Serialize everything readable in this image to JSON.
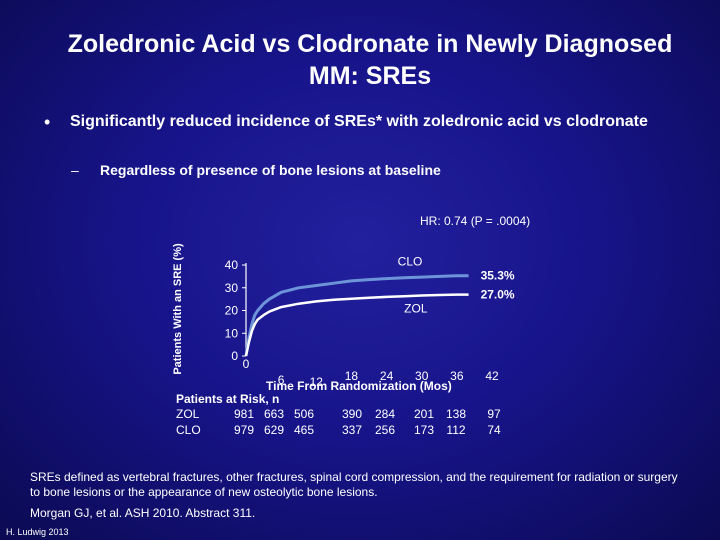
{
  "slide": {
    "title": "Zoledronic Acid vs Clodronate in Newly Diagnosed MM: SREs",
    "bullet_marker": "•",
    "bullet": "Significantly reduced incidence of SREs* with zoledronic acid vs clodronate",
    "sub_marker": "–",
    "sub_bullet": "Regardless of presence of bone lesions at baseline",
    "hr_note": "HR: 0.74 (P = .0004)",
    "footnote": "SREs defined as vertebral fractures, other fractures, spinal cord compression, and the requirement for radiation or surgery to bone lesions or the appearance of new osteolytic bone lesions.",
    "citation": "Morgan GJ, et al. ASH 2010. Abstract 311.",
    "credit": "H. Ludwig 2013"
  },
  "colors": {
    "background": "#17148a",
    "clo": "#6d94d8",
    "zol": "#ffffff"
  },
  "risk_table": {
    "heading": "Patients at Risk, n",
    "rows": [
      {
        "label": "ZOL",
        "values": [
          "981",
          "663",
          "506",
          "390",
          "284",
          "201",
          "138",
          "97"
        ]
      },
      {
        "label": "CLO",
        "values": [
          "979",
          "629",
          "465",
          "337",
          "256",
          "173",
          "112",
          "74"
        ]
      }
    ]
  },
  "chart_data": {
    "type": "line",
    "xlabel": "Time From Randomization (Mos)",
    "ylabel": "Patients With an SRE (%)",
    "xlim": [
      0,
      42
    ],
    "ylim": [
      0,
      40
    ],
    "x_ticks": [
      "0",
      "6",
      "12",
      "18",
      "24",
      "30",
      "36",
      "42"
    ],
    "y_ticks": [
      "0",
      "10",
      "20",
      "30",
      "40"
    ],
    "series": [
      {
        "name": "CLO",
        "end_label": "35.3%",
        "points": [
          [
            0,
            0
          ],
          [
            0.5,
            8
          ],
          [
            1,
            14
          ],
          [
            1.5,
            18
          ],
          [
            2,
            20
          ],
          [
            3,
            23
          ],
          [
            4,
            25
          ],
          [
            6,
            28
          ],
          [
            9,
            30
          ],
          [
            12,
            31
          ],
          [
            15,
            32
          ],
          [
            18,
            33
          ],
          [
            21,
            33.6
          ],
          [
            24,
            34
          ],
          [
            27,
            34.4
          ],
          [
            30,
            34.7
          ],
          [
            33,
            35
          ],
          [
            36,
            35.3
          ],
          [
            38,
            35.3
          ]
        ]
      },
      {
        "name": "ZOL",
        "end_label": "27.0%",
        "points": [
          [
            0,
            0
          ],
          [
            0.5,
            6
          ],
          [
            1,
            11
          ],
          [
            1.5,
            14
          ],
          [
            2,
            16
          ],
          [
            3,
            18
          ],
          [
            4,
            19.5
          ],
          [
            6,
            21.5
          ],
          [
            9,
            23
          ],
          [
            12,
            24
          ],
          [
            15,
            24.7
          ],
          [
            18,
            25.2
          ],
          [
            21,
            25.6
          ],
          [
            24,
            26
          ],
          [
            27,
            26.3
          ],
          [
            30,
            26.6
          ],
          [
            33,
            26.8
          ],
          [
            36,
            27
          ],
          [
            38,
            27
          ]
        ]
      }
    ]
  }
}
